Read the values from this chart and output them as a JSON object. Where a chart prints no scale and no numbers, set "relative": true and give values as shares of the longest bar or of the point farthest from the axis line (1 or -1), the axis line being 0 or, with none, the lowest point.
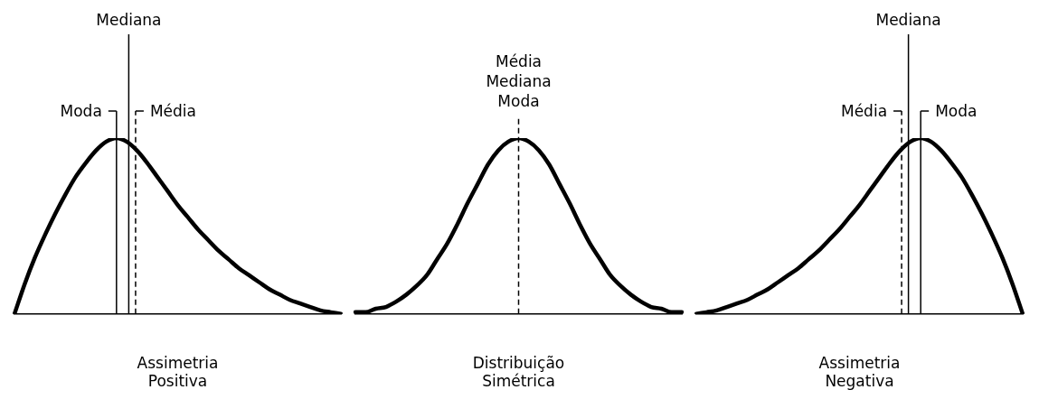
{
  "chart_data": [
    {
      "type": "line",
      "xlabel": "Assimetria Positiva",
      "relative": true,
      "color": "#000000",
      "marker": "none",
      "line_style": "solid",
      "grid": false,
      "legend": false,
      "categories": [
        null,
        null,
        null,
        null,
        null,
        null,
        null,
        null,
        null,
        null,
        null,
        null,
        null,
        null,
        null,
        null,
        null,
        null,
        null,
        null,
        null,
        null,
        null,
        null,
        null,
        null,
        null,
        null,
        null,
        null,
        null,
        null,
        null
      ],
      "values": [
        0,
        0.17,
        0.32,
        0.45,
        0.57,
        0.68,
        0.78,
        0.86,
        0.93,
        0.98,
        1,
        0.98,
        0.93,
        0.86,
        0.78,
        0.7,
        0.62,
        0.55,
        0.48,
        0.42,
        0.36,
        0.31,
        0.26,
        0.22,
        0.18,
        0.14,
        0.11,
        0.08,
        0.06,
        0.04,
        0.02,
        0.01,
        0
      ],
      "annotations": [
        "Moda",
        "Mediana",
        "Média"
      ]
    },
    {
      "type": "line",
      "xlabel": "Distribuição Simétrica",
      "relative": true,
      "color": "#000000",
      "marker": "none",
      "line_style": "solid",
      "grid": false,
      "legend": false,
      "categories": [
        null,
        null,
        null,
        null,
        null,
        null,
        null,
        null,
        null,
        null,
        null,
        null,
        null,
        null,
        null,
        null,
        null,
        null,
        null,
        null,
        null,
        null,
        null,
        null,
        null,
        null,
        null,
        null,
        null,
        null,
        null,
        null,
        null
      ],
      "values": [
        0.01,
        0.01,
        0.03,
        0.04,
        0.07,
        0.11,
        0.16,
        0.22,
        0.31,
        0.4,
        0.51,
        0.63,
        0.74,
        0.85,
        0.93,
        0.98,
        1,
        0.98,
        0.93,
        0.85,
        0.74,
        0.63,
        0.51,
        0.4,
        0.31,
        0.22,
        0.16,
        0.11,
        0.07,
        0.04,
        0.03,
        0.01,
        0.01
      ],
      "annotations": [
        "Média\nMediana\nModa"
      ]
    },
    {
      "type": "line",
      "xlabel": "Assimetria Negativa",
      "relative": true,
      "color": "#000000",
      "marker": "none",
      "line_style": "solid",
      "grid": false,
      "legend": false,
      "categories": [
        null,
        null,
        null,
        null,
        null,
        null,
        null,
        null,
        null,
        null,
        null,
        null,
        null,
        null,
        null,
        null,
        null,
        null,
        null,
        null,
        null,
        null,
        null,
        null,
        null,
        null,
        null,
        null,
        null,
        null,
        null,
        null,
        null
      ],
      "values": [
        0,
        0.01,
        0.02,
        0.04,
        0.06,
        0.08,
        0.11,
        0.14,
        0.18,
        0.22,
        0.26,
        0.31,
        0.36,
        0.42,
        0.48,
        0.55,
        0.62,
        0.7,
        0.78,
        0.86,
        0.93,
        0.98,
        1,
        0.98,
        0.93,
        0.86,
        0.78,
        0.68,
        0.57,
        0.45,
        0.32,
        0.17,
        0
      ],
      "annotations": [
        "Moda",
        "Mediana",
        "Média"
      ]
    }
  ]
}
